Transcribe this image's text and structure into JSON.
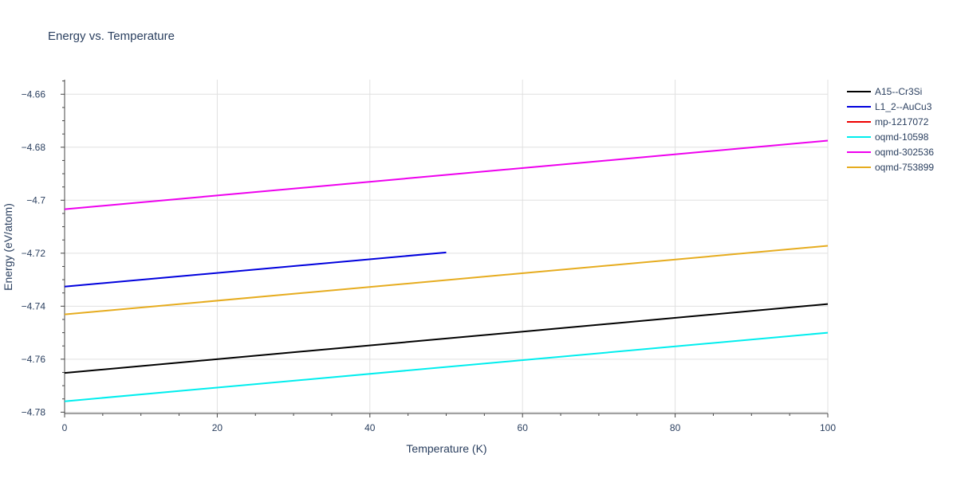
{
  "chart_data": {
    "type": "line",
    "title": "Energy vs. Temperature",
    "xlabel": "Temperature (K)",
    "ylabel": "Energy (eV/atom)",
    "xlim": [
      0,
      100
    ],
    "ylim": [
      -4.7805,
      -4.6545
    ],
    "xticks": [
      0,
      20,
      40,
      60,
      80,
      100
    ],
    "xtick_labels": [
      "0",
      "20",
      "40",
      "60",
      "80",
      "100"
    ],
    "yticks": [
      -4.78,
      -4.76,
      -4.74,
      -4.72,
      -4.7,
      -4.68,
      -4.66
    ],
    "ytick_labels": [
      "−4.78",
      "−4.76",
      "−4.74",
      "−4.72",
      "−4.7",
      "−4.68",
      "−4.66"
    ],
    "grid": true,
    "legend_position": "top-right",
    "series": [
      {
        "name": "A15--Cr3Si",
        "color": "#000000",
        "x": [
          0,
          100
        ],
        "y": [
          -4.7652,
          -4.7392
        ]
      },
      {
        "name": "L1_2--AuCu3",
        "color": "#0000dd",
        "x": [
          0,
          50
        ],
        "y": [
          -4.7326,
          -4.7197
        ]
      },
      {
        "name": "mp-1217072",
        "color": "#ee0000",
        "x": [],
        "y": []
      },
      {
        "name": "oqmd-10598",
        "color": "#00eeee",
        "x": [
          0,
          100
        ],
        "y": [
          -4.7759,
          -4.75
        ]
      },
      {
        "name": "oqmd-302536",
        "color": "#ee00ee",
        "x": [
          0,
          100
        ],
        "y": [
          -4.7034,
          -4.6775
        ]
      },
      {
        "name": "oqmd-753899",
        "color": "#e6ac1f",
        "x": [
          0,
          100
        ],
        "y": [
          -4.7431,
          -4.7172
        ]
      }
    ]
  }
}
